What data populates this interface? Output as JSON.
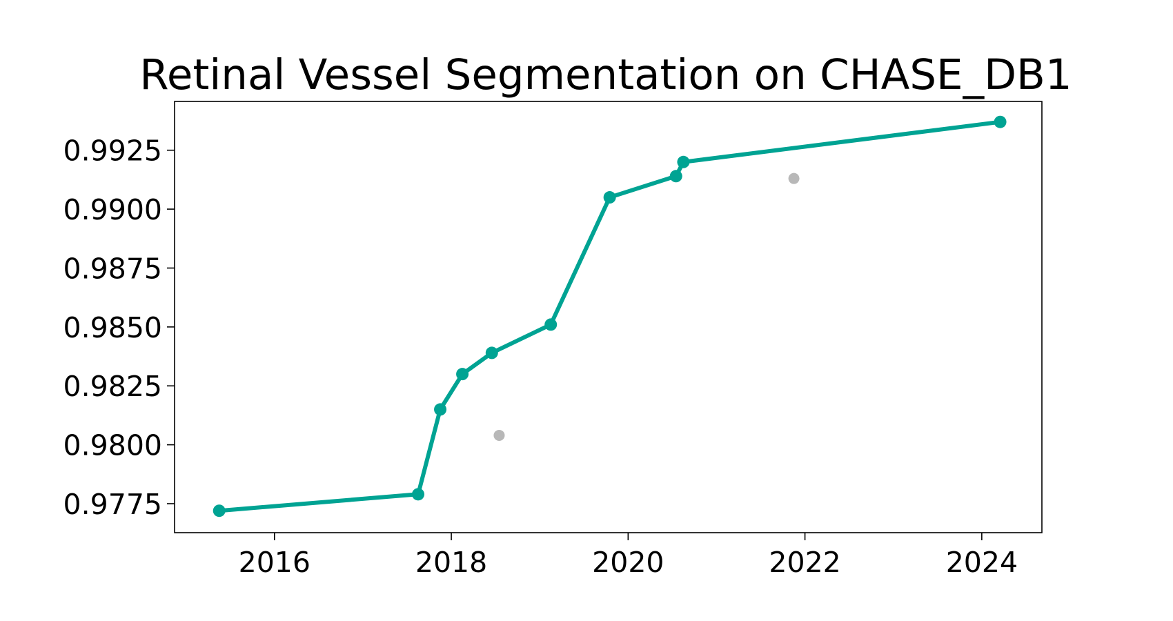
{
  "chart_data": {
    "type": "line",
    "title": "Retinal Vessel Segmentation on CHASE_DB1",
    "xlabel": "",
    "ylabel": "",
    "xlim": [
      2014.87,
      2024.68
    ],
    "ylim": [
      0.97627,
      0.99457
    ],
    "x_ticks": [
      "2016",
      "2018",
      "2020",
      "2022",
      "2024"
    ],
    "y_ticks": [
      "0.9775",
      "0.9800",
      "0.9825",
      "0.9850",
      "0.9875",
      "0.9900",
      "0.9925"
    ],
    "grid": false,
    "legend": "none",
    "series": [
      {
        "role": "state-of-the-art",
        "color": "#00a393",
        "points": [
          {
            "x": "2015-05",
            "y": 0.9772
          },
          {
            "x": "2017-08",
            "y": 0.9779
          },
          {
            "x": "2017-11",
            "y": 0.9815
          },
          {
            "x": "2018-02",
            "y": 0.983
          },
          {
            "x": "2018-06",
            "y": 0.9839
          },
          {
            "x": "2019-02",
            "y": 0.9851
          },
          {
            "x": "2019-10",
            "y": 0.9905
          },
          {
            "x": "2020-07",
            "y": 0.9914
          },
          {
            "x": "2020-08",
            "y": 0.992
          },
          {
            "x": "2024-03",
            "y": 0.9937
          }
        ]
      },
      {
        "role": "other",
        "color": "#b8b8b8",
        "points": [
          {
            "x": "2018-07",
            "y": 0.9804
          },
          {
            "x": "2021-11",
            "y": 0.9913
          }
        ]
      }
    ]
  }
}
